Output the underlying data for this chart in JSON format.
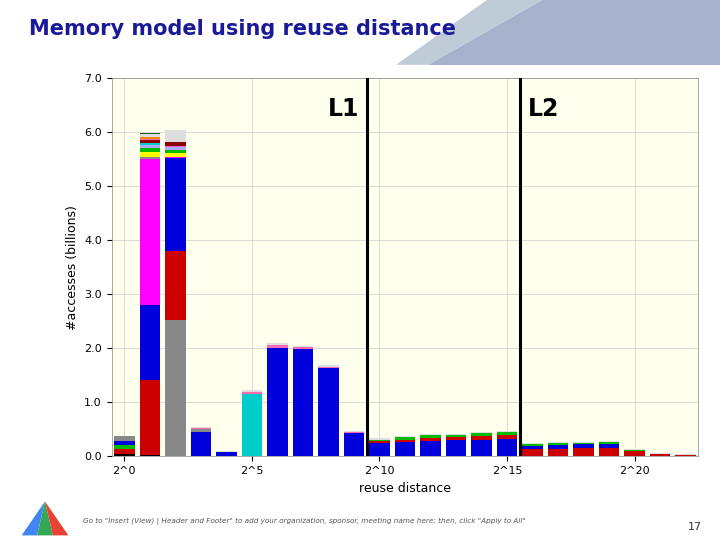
{
  "title": "Memory model using reuse distance",
  "xlabel": "reuse distance",
  "ylabel": "#accesses (billions)",
  "background_color": "#ffffee",
  "fig_background": "#ffffff",
  "ylim": [
    0,
    7.0
  ],
  "yticks": [
    0.0,
    1.0,
    2.0,
    3.0,
    4.0,
    5.0,
    6.0,
    7.0
  ],
  "xtick_labels": [
    "2^0",
    "2^5",
    "2^10",
    "2^15",
    "2^20"
  ],
  "xtick_positions": [
    0,
    5,
    10,
    15,
    20
  ],
  "L1_x": 9.5,
  "L2_x": 15.5,
  "num_bins": 23,
  "bar_data": [
    {
      "segments": [
        {
          "color": "#000000",
          "val": 0.04
        },
        {
          "color": "#cc0000",
          "val": 0.1
        },
        {
          "color": "#00bb00",
          "val": 0.07
        },
        {
          "color": "#0000dd",
          "val": 0.08
        },
        {
          "color": "#888888",
          "val": 0.09
        }
      ]
    },
    {
      "segments": [
        {
          "color": "#000000",
          "val": 0.03
        },
        {
          "color": "#cc0000",
          "val": 1.38
        },
        {
          "color": "#0000dd",
          "val": 1.4
        },
        {
          "color": "#ff00ff",
          "val": 2.7
        },
        {
          "color": "#888888",
          "val": 0.04
        },
        {
          "color": "#ffff00",
          "val": 0.08
        },
        {
          "color": "#00bb00",
          "val": 0.08
        },
        {
          "color": "#aaaaff",
          "val": 0.05
        },
        {
          "color": "#00cccc",
          "val": 0.04
        },
        {
          "color": "#8B0000",
          "val": 0.05
        },
        {
          "color": "#ff69b4",
          "val": 0.03
        },
        {
          "color": "#ff8800",
          "val": 0.03
        },
        {
          "color": "#dddddd",
          "val": 0.05
        },
        {
          "color": "#006400",
          "val": 0.03
        }
      ]
    },
    {
      "segments": [
        {
          "color": "#888888",
          "val": 2.52
        },
        {
          "color": "#cc0000",
          "val": 1.28
        },
        {
          "color": "#0000dd",
          "val": 1.72
        },
        {
          "color": "#ff00ff",
          "val": 0.03
        },
        {
          "color": "#ffff00",
          "val": 0.06
        },
        {
          "color": "#00bb00",
          "val": 0.06
        },
        {
          "color": "#aaaaff",
          "val": 0.05
        },
        {
          "color": "#ff69b4",
          "val": 0.03
        },
        {
          "color": "#8B0000",
          "val": 0.07
        },
        {
          "color": "#dddddd",
          "val": 0.23
        }
      ]
    },
    {
      "segments": [
        {
          "color": "#0000dd",
          "val": 0.45
        },
        {
          "color": "#888888",
          "val": 0.05
        },
        {
          "color": "#ff69b4",
          "val": 0.02
        },
        {
          "color": "#dddddd",
          "val": 0.03
        }
      ]
    },
    {
      "segments": [
        {
          "color": "#0000dd",
          "val": 0.08
        },
        {
          "color": "#dddddd",
          "val": 0.02
        }
      ]
    },
    {
      "segments": [
        {
          "color": "#00cccc",
          "val": 1.15
        },
        {
          "color": "#ff69b4",
          "val": 0.04
        },
        {
          "color": "#dddddd",
          "val": 0.03
        }
      ]
    },
    {
      "segments": [
        {
          "color": "#0000dd",
          "val": 2.0
        },
        {
          "color": "#ff69b4",
          "val": 0.06
        },
        {
          "color": "#dddddd",
          "val": 0.04
        }
      ]
    },
    {
      "segments": [
        {
          "color": "#0000dd",
          "val": 1.98
        },
        {
          "color": "#ff69b4",
          "val": 0.04
        },
        {
          "color": "#dddddd",
          "val": 0.03
        }
      ]
    },
    {
      "segments": [
        {
          "color": "#0000dd",
          "val": 1.63
        },
        {
          "color": "#ff69b4",
          "val": 0.03
        },
        {
          "color": "#dddddd",
          "val": 0.03
        }
      ]
    },
    {
      "segments": [
        {
          "color": "#0000dd",
          "val": 0.43
        },
        {
          "color": "#ff69b4",
          "val": 0.02
        },
        {
          "color": "#dddddd",
          "val": 0.02
        }
      ]
    },
    {
      "segments": [
        {
          "color": "#0000dd",
          "val": 0.25
        },
        {
          "color": "#cc0000",
          "val": 0.03
        },
        {
          "color": "#00bb00",
          "val": 0.03
        },
        {
          "color": "#dddddd",
          "val": 0.02
        }
      ]
    },
    {
      "segments": [
        {
          "color": "#0000dd",
          "val": 0.27
        },
        {
          "color": "#cc0000",
          "val": 0.04
        },
        {
          "color": "#00bb00",
          "val": 0.04
        },
        {
          "color": "#dddddd",
          "val": 0.02
        }
      ]
    },
    {
      "segments": [
        {
          "color": "#0000dd",
          "val": 0.29
        },
        {
          "color": "#cc0000",
          "val": 0.05
        },
        {
          "color": "#00bb00",
          "val": 0.05
        },
        {
          "color": "#dddddd",
          "val": 0.02
        }
      ]
    },
    {
      "segments": [
        {
          "color": "#0000dd",
          "val": 0.3
        },
        {
          "color": "#cc0000",
          "val": 0.05
        },
        {
          "color": "#00bb00",
          "val": 0.05
        },
        {
          "color": "#dddddd",
          "val": 0.02
        }
      ]
    },
    {
      "segments": [
        {
          "color": "#0000dd",
          "val": 0.31
        },
        {
          "color": "#cc0000",
          "val": 0.06
        },
        {
          "color": "#00bb00",
          "val": 0.06
        },
        {
          "color": "#dddddd",
          "val": 0.02
        }
      ]
    },
    {
      "segments": [
        {
          "color": "#0000dd",
          "val": 0.32
        },
        {
          "color": "#cc0000",
          "val": 0.07
        },
        {
          "color": "#00bb00",
          "val": 0.06
        },
        {
          "color": "#dddddd",
          "val": 0.02
        }
      ]
    },
    {
      "segments": [
        {
          "color": "#cc0000",
          "val": 0.13
        },
        {
          "color": "#0000dd",
          "val": 0.07
        },
        {
          "color": "#00bb00",
          "val": 0.03
        },
        {
          "color": "#dddddd",
          "val": 0.02
        }
      ]
    },
    {
      "segments": [
        {
          "color": "#cc0000",
          "val": 0.14
        },
        {
          "color": "#0000dd",
          "val": 0.07
        },
        {
          "color": "#00bb00",
          "val": 0.03
        },
        {
          "color": "#dddddd",
          "val": 0.02
        }
      ]
    },
    {
      "segments": [
        {
          "color": "#cc0000",
          "val": 0.15
        },
        {
          "color": "#0000dd",
          "val": 0.07
        },
        {
          "color": "#00bb00",
          "val": 0.03
        },
        {
          "color": "#dddddd",
          "val": 0.02
        }
      ]
    },
    {
      "segments": [
        {
          "color": "#cc0000",
          "val": 0.16
        },
        {
          "color": "#0000dd",
          "val": 0.07
        },
        {
          "color": "#00bb00",
          "val": 0.03
        },
        {
          "color": "#dddddd",
          "val": 0.02
        }
      ]
    },
    {
      "segments": [
        {
          "color": "#cc0000",
          "val": 0.1
        },
        {
          "color": "#00bb00",
          "val": 0.02
        },
        {
          "color": "#dddddd",
          "val": 0.02
        }
      ]
    },
    {
      "segments": [
        {
          "color": "#cc0000",
          "val": 0.05
        },
        {
          "color": "#dddddd",
          "val": 0.02
        }
      ]
    },
    {
      "segments": [
        {
          "color": "#cc0000",
          "val": 0.03
        },
        {
          "color": "#dddddd",
          "val": 0.01
        }
      ]
    }
  ],
  "footer_text": "Go to \"Insert (View) | Header and Footer\" to add your organization, sponsor, meeting name here; then, click \"Apply to All\"",
  "slide_number": "17"
}
